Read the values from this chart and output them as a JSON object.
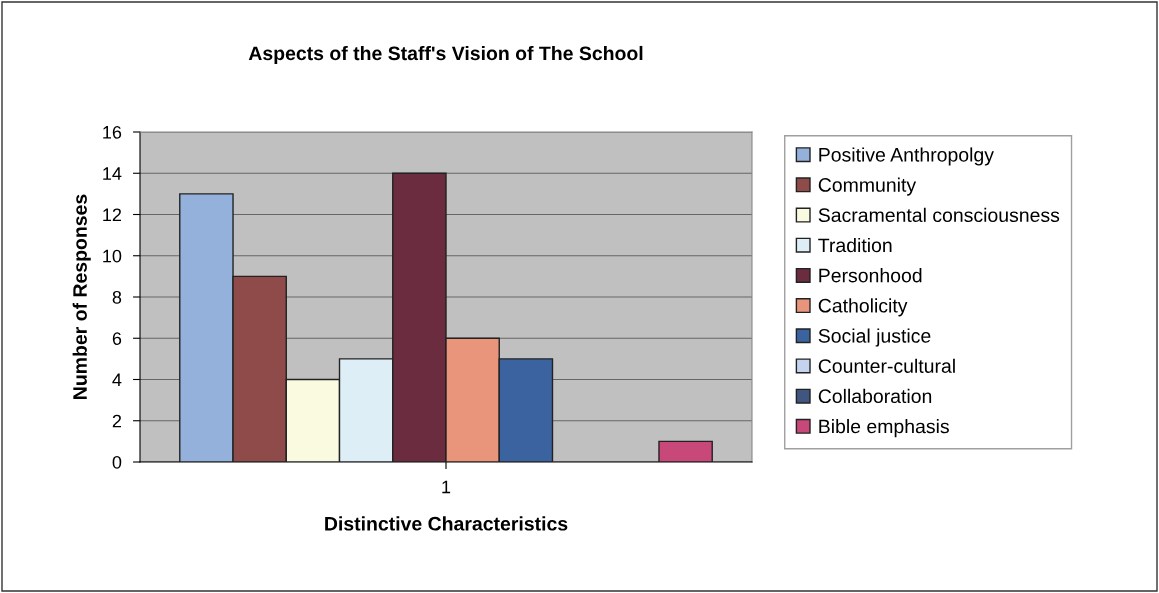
{
  "chart_data": {
    "type": "bar",
    "title": "Aspects of the Staff's Vision of The School",
    "xlabel": "Distinctive Characteristics",
    "ylabel": "Number of Responses",
    "categories": [
      "1"
    ],
    "series": [
      {
        "name": "Positive Anthropolgy",
        "color": "#94b1dc",
        "values": [
          13
        ]
      },
      {
        "name": "Community",
        "color": "#8f4a4a",
        "values": [
          9
        ]
      },
      {
        "name": "Sacramental consciousness",
        "color": "#fafae0",
        "values": [
          4
        ]
      },
      {
        "name": "Tradition",
        "color": "#ddeef6",
        "values": [
          5
        ]
      },
      {
        "name": "Personhood",
        "color": "#6a2c3e",
        "values": [
          14
        ]
      },
      {
        "name": "Catholicity",
        "color": "#e9957c",
        "values": [
          6
        ]
      },
      {
        "name": "Social justice",
        "color": "#3b63a0",
        "values": [
          5
        ]
      },
      {
        "name": "Counter-cultural",
        "color": "#c5d4ee",
        "values": [
          0
        ]
      },
      {
        "name": "Collaboration",
        "color": "#3f5680",
        "values": [
          0
        ]
      },
      {
        "name": "Bible emphasis",
        "color": "#c9487a",
        "values": [
          1
        ]
      }
    ],
    "ylim": [
      0,
      16
    ],
    "yticks": [
      0,
      2,
      4,
      6,
      8,
      10,
      12,
      14,
      16
    ],
    "grid": "y",
    "legend": "right"
  }
}
